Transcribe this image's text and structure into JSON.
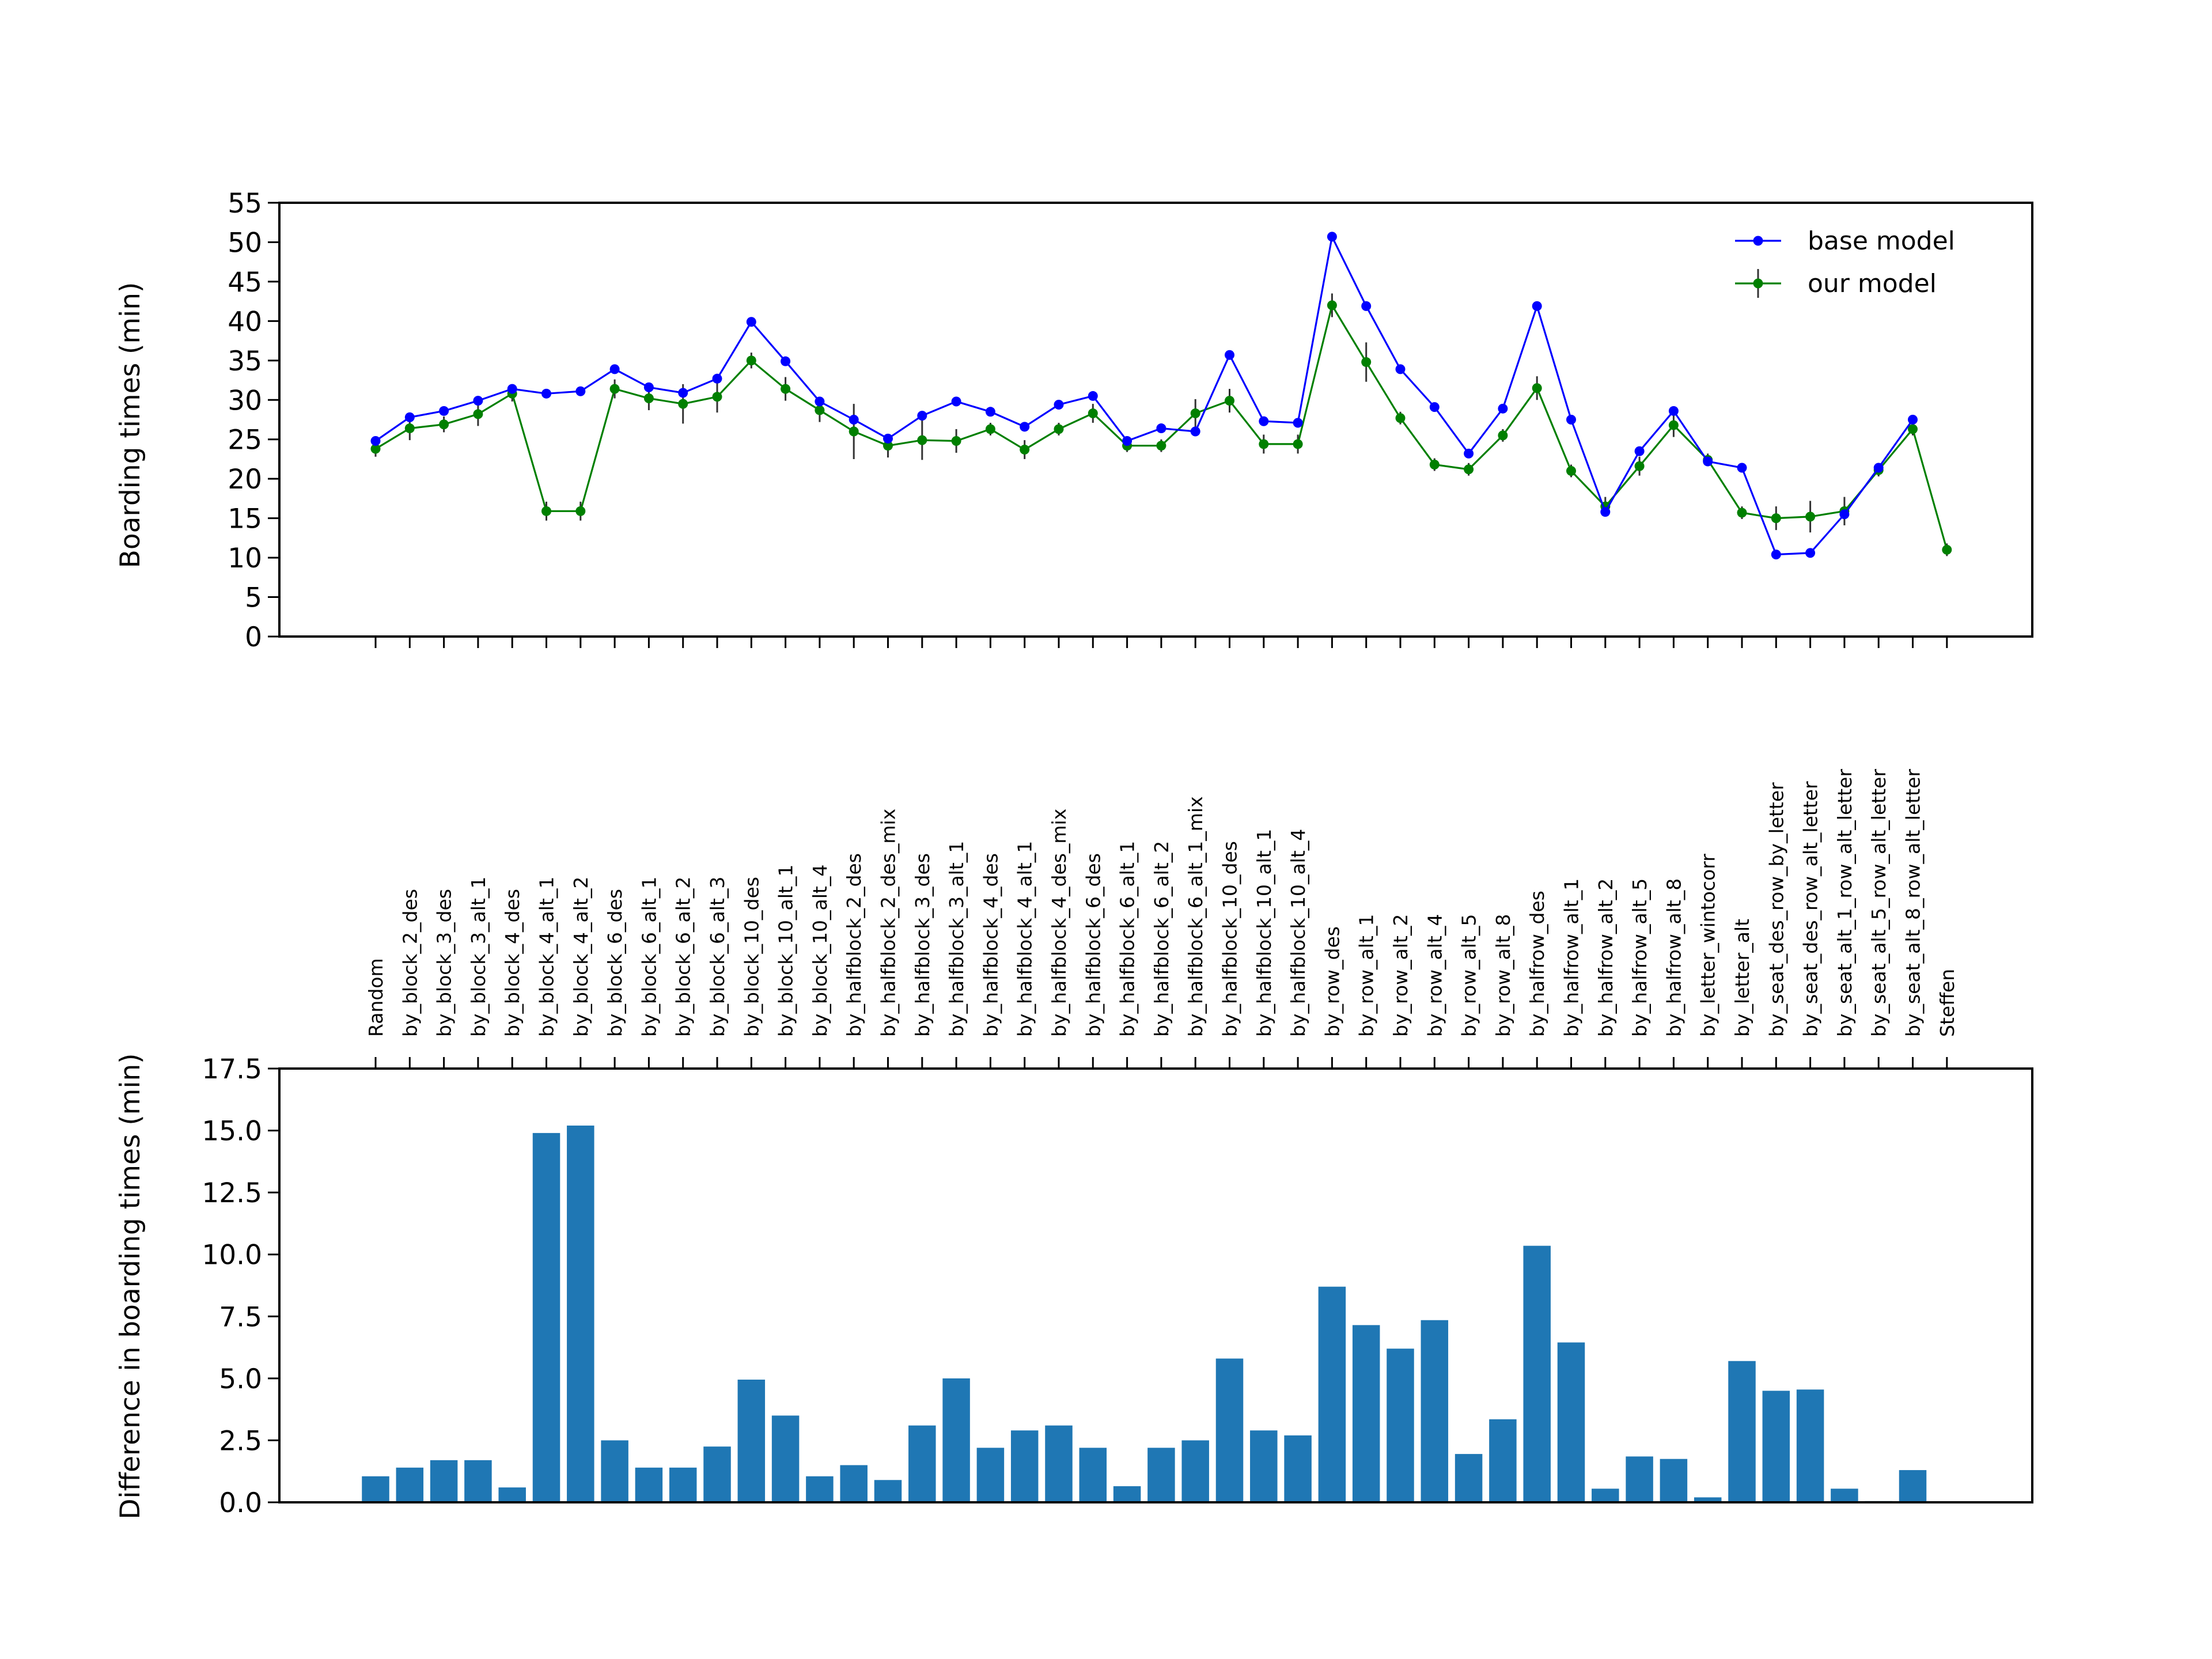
{
  "chart_data": [
    {
      "type": "line",
      "ylabel": "Boarding times (min)",
      "ylim": [
        0,
        55
      ],
      "yticks": [
        "0",
        "5",
        "10",
        "15",
        "20",
        "25",
        "30",
        "35",
        "40",
        "45",
        "50",
        "55"
      ],
      "legend": {
        "placement": "top-right"
      },
      "series": [
        {
          "name": "base model",
          "color": "#0000ff",
          "marker": "circle",
          "values": [
            24.8,
            27.8,
            28.6,
            29.9,
            31.4,
            30.8,
            31.1,
            33.9,
            31.6,
            30.9,
            32.7,
            39.9,
            34.9,
            29.8,
            27.5,
            25.1,
            28.0,
            29.8,
            28.5,
            26.6,
            29.4,
            30.5,
            24.8,
            26.4,
            26.0,
            35.7,
            27.3,
            27.1,
            50.7,
            41.9,
            33.9,
            29.1,
            23.2,
            28.9,
            41.9,
            27.5,
            15.8,
            23.5,
            28.6,
            22.2,
            21.4,
            10.4,
            10.6,
            15.5,
            21.4,
            27.5,
            null
          ]
        },
        {
          "name": "our model",
          "color": "#008000",
          "marker": "circle",
          "errorbars": true,
          "values": [
            23.8,
            26.4,
            26.9,
            28.2,
            30.8,
            15.9,
            15.9,
            31.4,
            30.2,
            29.5,
            30.4,
            35.0,
            31.4,
            28.7,
            26.0,
            24.2,
            24.9,
            24.8,
            26.3,
            23.7,
            26.3,
            28.3,
            24.2,
            24.2,
            28.3,
            29.9,
            24.4,
            24.4,
            42.0,
            34.8,
            27.7,
            21.8,
            21.2,
            25.5,
            31.5,
            21.0,
            16.5,
            21.6,
            26.8,
            22.4,
            15.7,
            15.0,
            15.2,
            15.9,
            21.1,
            26.3,
            11.0
          ],
          "errors": [
            1.0,
            1.5,
            1.0,
            1.5,
            1.0,
            1.2,
            1.2,
            1.2,
            1.5,
            2.5,
            2.0,
            1.0,
            1.5,
            1.5,
            3.5,
            1.5,
            2.5,
            1.5,
            0.8,
            1.2,
            0.8,
            1.2,
            0.8,
            0.8,
            1.8,
            1.5,
            1.2,
            1.2,
            1.5,
            2.5,
            0.8,
            0.8,
            0.8,
            0.8,
            1.5,
            0.8,
            1.2,
            1.2,
            1.5,
            0.8,
            0.8,
            1.5,
            2.0,
            1.8,
            0.8,
            0.8,
            0.8
          ]
        }
      ]
    },
    {
      "type": "bar",
      "ylabel": "Difference in boarding times (min)",
      "ylim": [
        0,
        17.5
      ],
      "yticks": [
        "0.0",
        "2.5",
        "5.0",
        "7.5",
        "10.0",
        "12.5",
        "15.0",
        "17.5"
      ],
      "color": "#1f77b4",
      "categories": [
        "Random",
        "by_block_2_des",
        "by_block_3_des",
        "by_block_3_alt_1",
        "by_block_4_des",
        "by_block_4_alt_1",
        "by_block_4_alt_2",
        "by_block_6_des",
        "by_block_6_alt_1",
        "by_block_6_alt_2",
        "by_block_6_alt_3",
        "by_block_10_des",
        "by_block_10_alt_1",
        "by_block_10_alt_4",
        "by_halfblock_2_des",
        "by_halfblock_2_des_mix",
        "by_halfblock_3_des",
        "by_halfblock_3_alt_1",
        "by_halfblock_4_des",
        "by_halfblock_4_alt_1",
        "by_halfblock_4_des_mix",
        "by_halfblock_6_des",
        "by_halfblock_6_alt_1",
        "by_halfblock_6_alt_2",
        "by_halfblock_6_alt_1_mix",
        "by_halfblock_10_des",
        "by_halfblock_10_alt_1",
        "by_halfblock_10_alt_4",
        "by_row_des",
        "by_row_alt_1",
        "by_row_alt_2",
        "by_row_alt_4",
        "by_row_alt_5",
        "by_row_alt_8",
        "by_halfrow_des",
        "by_halfrow_alt_1",
        "by_halfrow_alt_2",
        "by_halfrow_alt_5",
        "by_halfrow_alt_8",
        "by_letter_wintocorr",
        "by_letter_alt",
        "by_seat_des_row_by_letter",
        "by_seat_des_row_alt_letter",
        "by_seat_alt_1_row_alt_letter",
        "by_seat_alt_5_row_alt_letter",
        "by_seat_alt_8_row_alt_letter",
        "Steffen"
      ],
      "values": [
        1.05,
        1.4,
        1.7,
        1.7,
        0.6,
        14.9,
        15.2,
        2.5,
        1.4,
        1.4,
        2.25,
        4.95,
        3.5,
        1.05,
        1.5,
        0.9,
        3.1,
        5.0,
        2.2,
        2.9,
        3.1,
        2.2,
        0.65,
        2.2,
        2.5,
        5.8,
        2.9,
        2.7,
        8.7,
        7.15,
        6.2,
        7.35,
        1.95,
        3.35,
        10.35,
        6.45,
        0.55,
        1.85,
        1.75,
        0.2,
        5.7,
        4.5,
        4.55,
        0.55,
        0.05,
        1.3,
        null
      ]
    }
  ]
}
